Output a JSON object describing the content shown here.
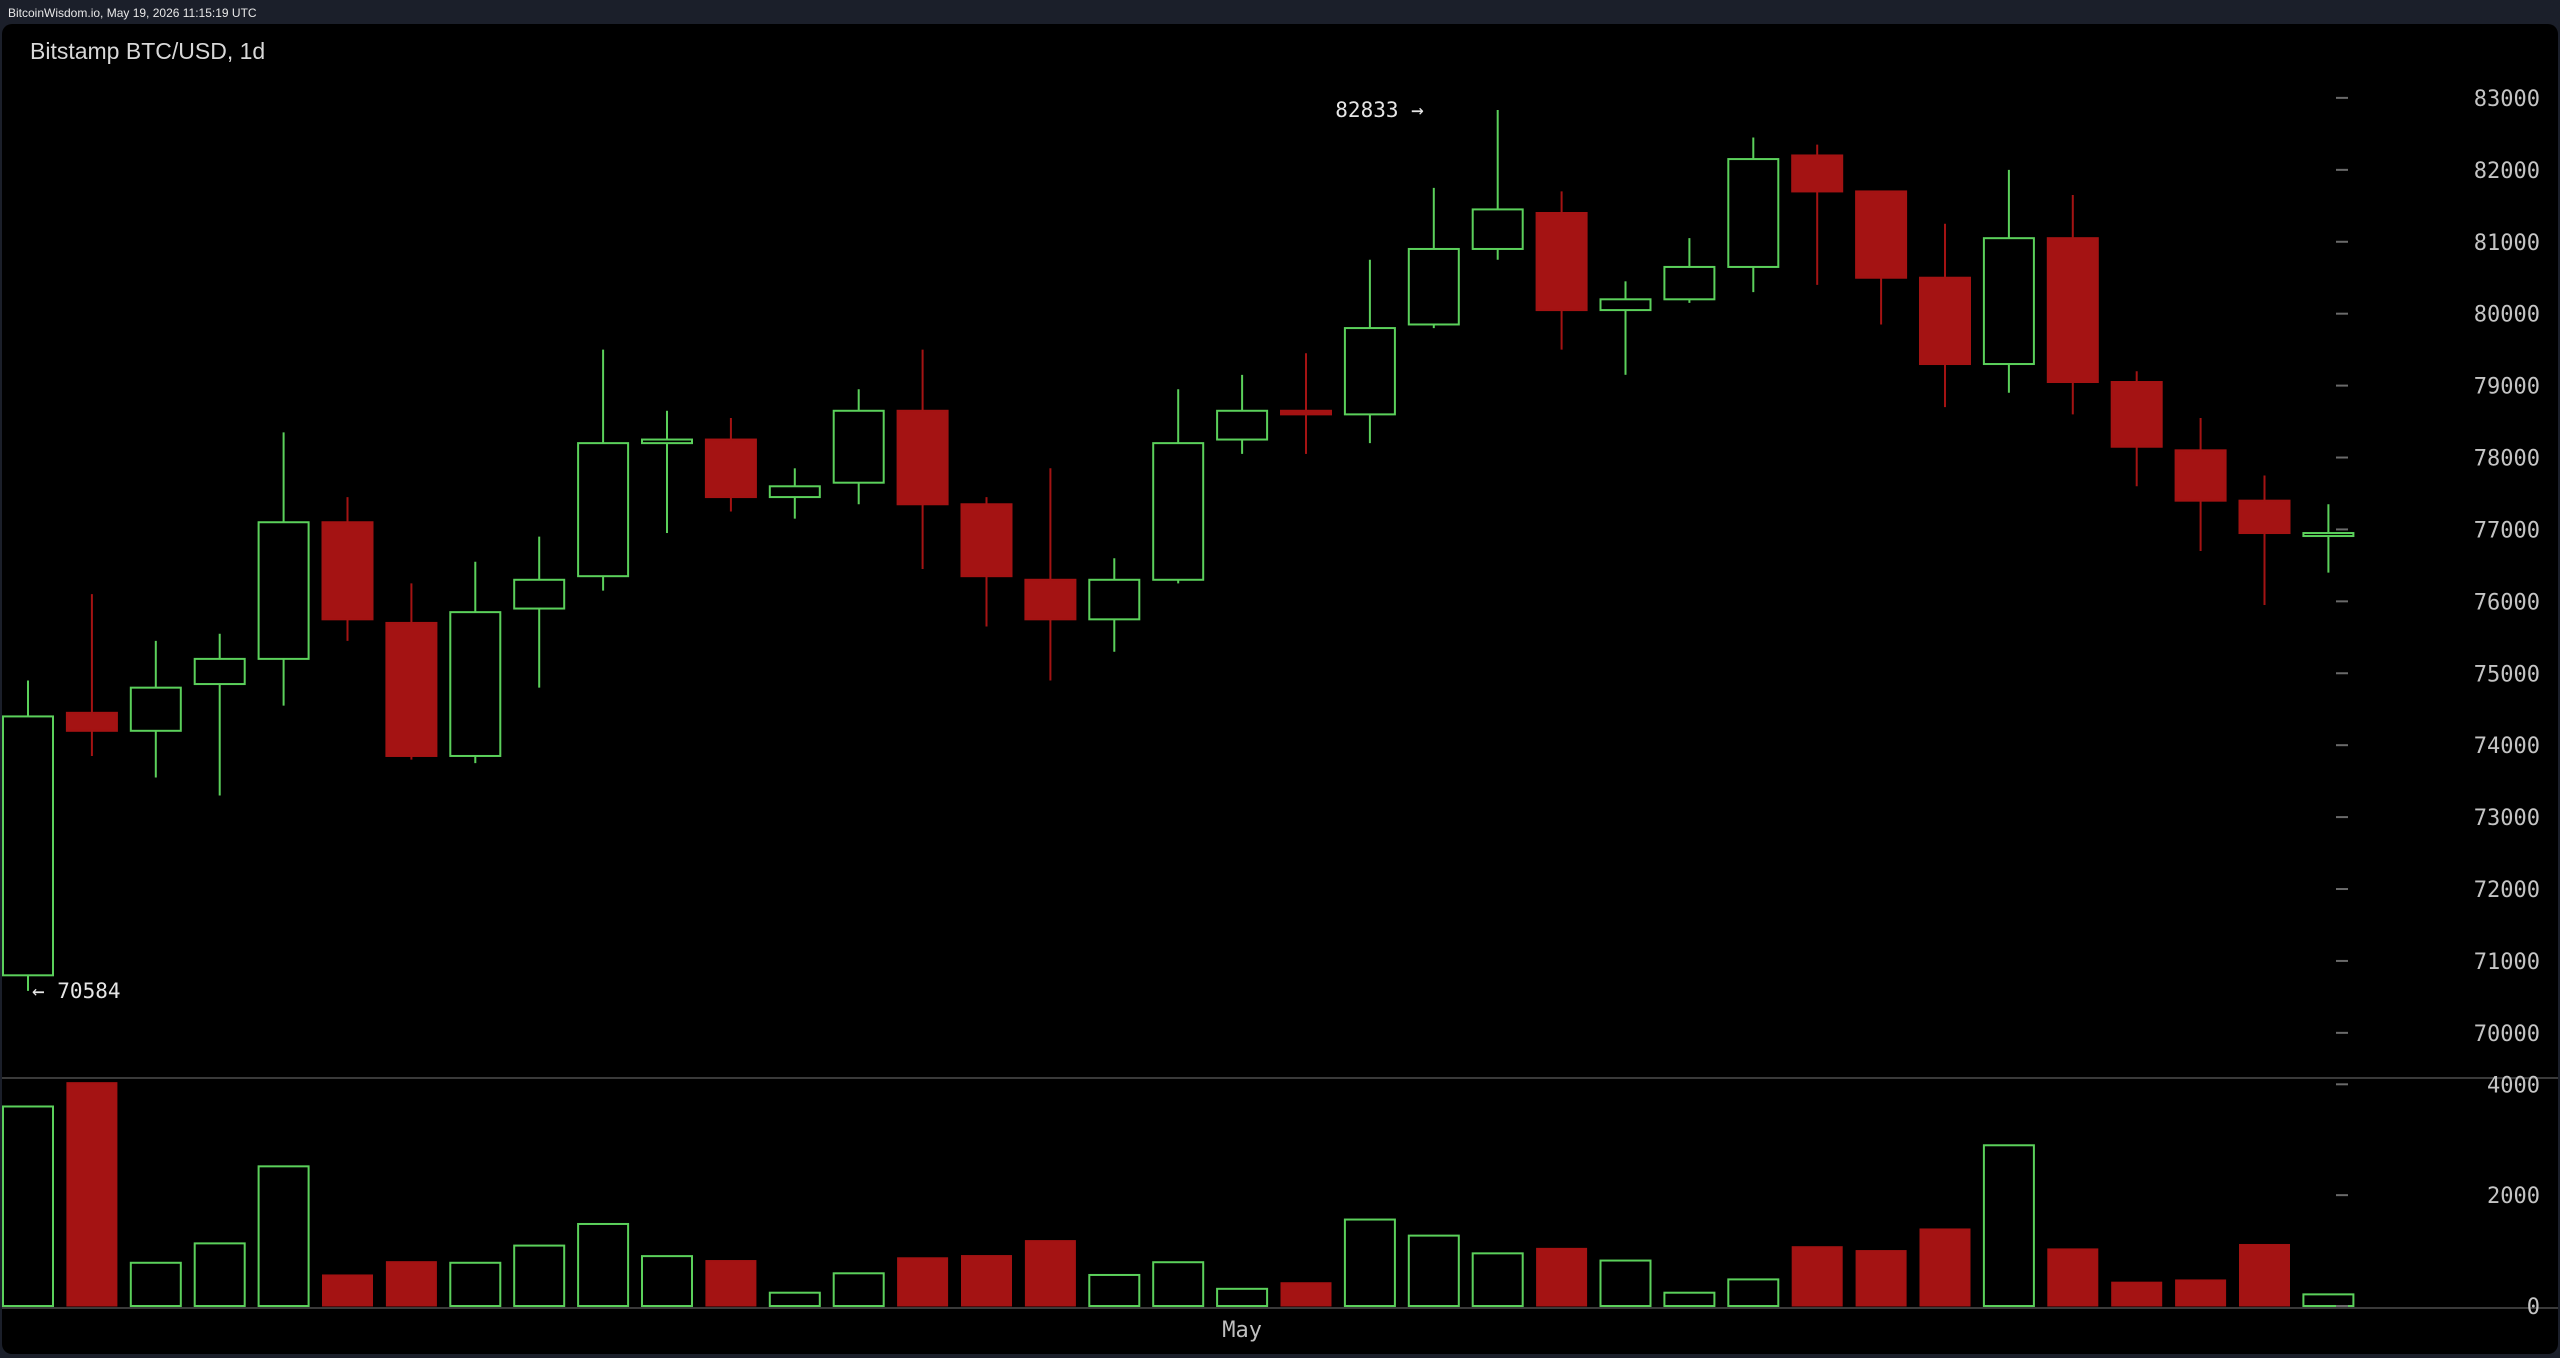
{
  "header": {
    "source": "BitcoinWisdom.io, May 19, 2026 11:15:19 UTC"
  },
  "colors": {
    "up": "#5bd05b",
    "down": "#a41313",
    "axis_text": "#c4c4c4",
    "background": "#000000"
  },
  "chart_data": {
    "type": "candlestick",
    "title": "Bitstamp BTC/USD, 1d",
    "interval": "1d",
    "price_axis": {
      "ticks": [
        70000,
        71000,
        72000,
        73000,
        74000,
        75000,
        76000,
        77000,
        78000,
        79000,
        80000,
        81000,
        82000,
        83000
      ],
      "range": [
        69400,
        83750
      ]
    },
    "volume_axis": {
      "ticks": [
        0,
        2000,
        4000
      ],
      "range": [
        0,
        4150
      ]
    },
    "x_axis_labels": [
      {
        "label": "May",
        "index": 19
      }
    ],
    "annotations": [
      {
        "label": "82833 →",
        "price": 82833,
        "index": 22,
        "side": "left"
      },
      {
        "label": "← 70584",
        "price": 70584,
        "index": 0,
        "side": "right"
      }
    ],
    "candles": [
      {
        "open": 70800,
        "high": 74900,
        "low": 70584,
        "close": 74400,
        "volume": 3600
      },
      {
        "open": 74450,
        "high": 76100,
        "low": 73850,
        "close": 74200,
        "volume": 4030
      },
      {
        "open": 74200,
        "high": 75450,
        "low": 73550,
        "close": 74800,
        "volume": 780
      },
      {
        "open": 74850,
        "high": 75550,
        "low": 73300,
        "close": 75200,
        "volume": 1130
      },
      {
        "open": 75200,
        "high": 78350,
        "low": 74550,
        "close": 77100,
        "volume": 2520
      },
      {
        "open": 77100,
        "high": 77450,
        "low": 75450,
        "close": 75750,
        "volume": 560
      },
      {
        "open": 75700,
        "high": 76250,
        "low": 73800,
        "close": 73850,
        "volume": 800
      },
      {
        "open": 73850,
        "high": 76550,
        "low": 73750,
        "close": 75850,
        "volume": 780
      },
      {
        "open": 75900,
        "high": 76900,
        "low": 74800,
        "close": 76300,
        "volume": 1090
      },
      {
        "open": 76350,
        "high": 79500,
        "low": 76150,
        "close": 78200,
        "volume": 1480
      },
      {
        "open": 78200,
        "high": 78650,
        "low": 76950,
        "close": 78250,
        "volume": 900
      },
      {
        "open": 78250,
        "high": 78550,
        "low": 77250,
        "close": 77450,
        "volume": 820
      },
      {
        "open": 77450,
        "high": 77850,
        "low": 77150,
        "close": 77600,
        "volume": 240
      },
      {
        "open": 77650,
        "high": 78950,
        "low": 77350,
        "close": 78650,
        "volume": 590
      },
      {
        "open": 78650,
        "high": 79500,
        "low": 76450,
        "close": 77350,
        "volume": 870
      },
      {
        "open": 77350,
        "high": 77450,
        "low": 75650,
        "close": 76350,
        "volume": 910
      },
      {
        "open": 76300,
        "high": 77850,
        "low": 74900,
        "close": 75750,
        "volume": 1180
      },
      {
        "open": 75750,
        "high": 76600,
        "low": 75300,
        "close": 76300,
        "volume": 560
      },
      {
        "open": 76300,
        "high": 78950,
        "low": 76250,
        "close": 78200,
        "volume": 790
      },
      {
        "open": 78250,
        "high": 79150,
        "low": 78050,
        "close": 78650,
        "volume": 310
      },
      {
        "open": 78650,
        "high": 79450,
        "low": 78050,
        "close": 78600,
        "volume": 420
      },
      {
        "open": 78600,
        "high": 80750,
        "low": 78200,
        "close": 79800,
        "volume": 1560
      },
      {
        "open": 79850,
        "high": 81750,
        "low": 79800,
        "close": 80900,
        "volume": 1270
      },
      {
        "open": 80900,
        "high": 82833,
        "low": 80750,
        "close": 81450,
        "volume": 950
      },
      {
        "open": 81400,
        "high": 81700,
        "low": 79500,
        "close": 80050,
        "volume": 1040
      },
      {
        "open": 80050,
        "high": 80450,
        "low": 79150,
        "close": 80200,
        "volume": 820
      },
      {
        "open": 80200,
        "high": 81050,
        "low": 80150,
        "close": 80650,
        "volume": 240
      },
      {
        "open": 80650,
        "high": 82450,
        "low": 80300,
        "close": 82150,
        "volume": 480
      },
      {
        "open": 82200,
        "high": 82350,
        "low": 80400,
        "close": 81700,
        "volume": 1070
      },
      {
        "open": 81700,
        "high": 81700,
        "low": 79850,
        "close": 80500,
        "volume": 1000
      },
      {
        "open": 80500,
        "high": 81250,
        "low": 78700,
        "close": 79300,
        "volume": 1390
      },
      {
        "open": 79300,
        "high": 82000,
        "low": 78900,
        "close": 81050,
        "volume": 2900
      },
      {
        "open": 81050,
        "high": 81650,
        "low": 78600,
        "close": 79050,
        "volume": 1030
      },
      {
        "open": 79050,
        "high": 79200,
        "low": 77600,
        "close": 78150,
        "volume": 430
      },
      {
        "open": 78100,
        "high": 78550,
        "low": 76700,
        "close": 77400,
        "volume": 470
      },
      {
        "open": 77400,
        "high": 77750,
        "low": 75950,
        "close": 76950,
        "volume": 1110
      },
      {
        "open": 76950,
        "high": 77350,
        "low": 76400,
        "close": 76950,
        "volume": 210
      }
    ]
  }
}
